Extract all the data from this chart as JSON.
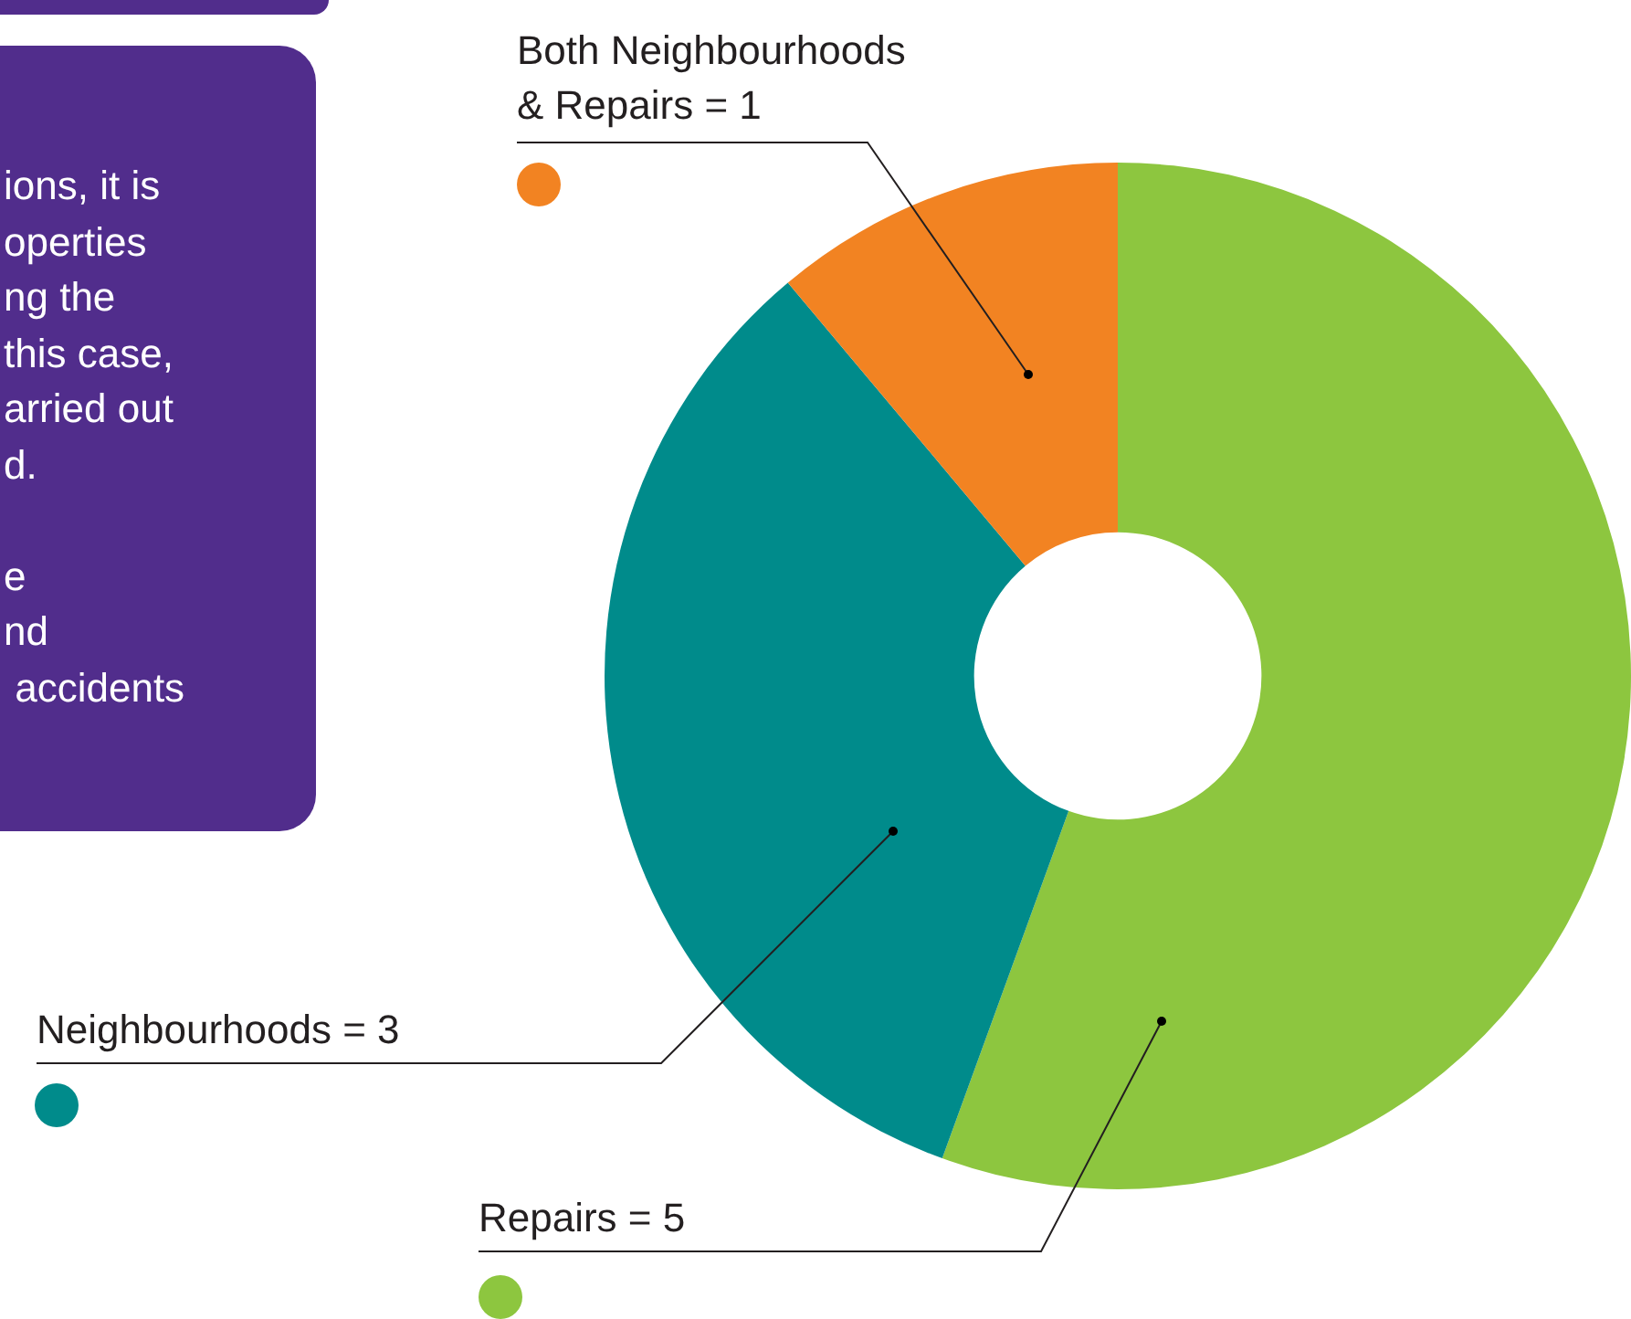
{
  "chart_data": {
    "type": "donut",
    "categories": [
      "Repairs = 5",
      "Neighbourhoods = 3",
      "Both Neighbourhoods & Repairs = 1"
    ],
    "values": [
      5,
      3,
      1
    ],
    "colors": [
      "#8dc63f",
      "#008b8b",
      "#f28322"
    ],
    "legend": false,
    "annotations": [
      "ions, it is\noperties\nng the\nthis case,\narried out\nd.\n\ne\nnd\n accidents"
    ]
  }
}
